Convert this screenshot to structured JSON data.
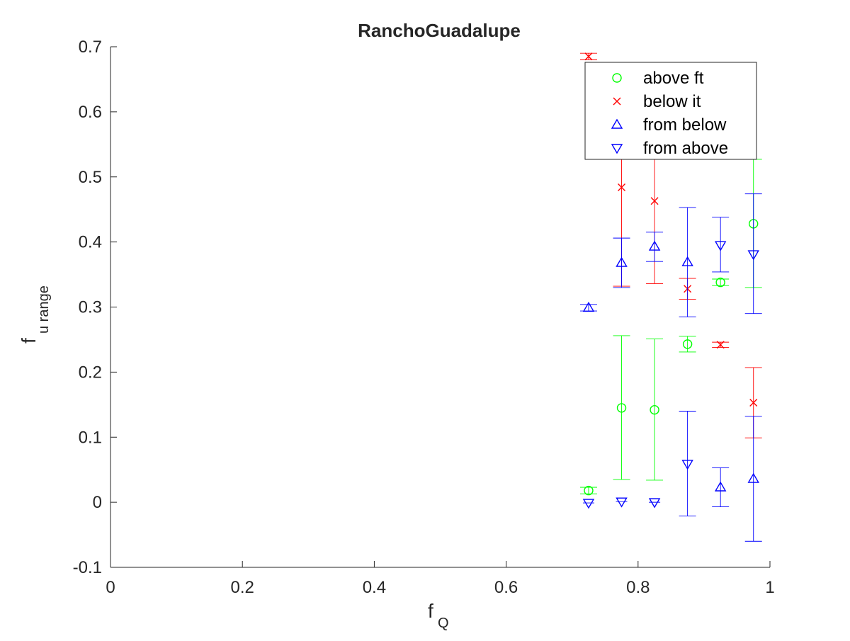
{
  "chart_data": {
    "type": "scatter",
    "title": "RanchoGuadalupe",
    "xlabel": {
      "main": "f",
      "sub": "Q"
    },
    "ylabel": {
      "main": "f",
      "sub": "u range"
    },
    "xlim": [
      0,
      1
    ],
    "ylim": [
      -0.1,
      0.7
    ],
    "x_ticks": [
      0,
      0.2,
      0.4,
      0.6,
      0.8,
      1
    ],
    "x_tick_labels": [
      "0",
      "0.2",
      "0.4",
      "0.6",
      "0.8",
      "1"
    ],
    "y_ticks": [
      -0.1,
      0,
      0.1,
      0.2,
      0.3,
      0.4,
      0.5,
      0.6,
      0.7
    ],
    "y_tick_labels": [
      "-0.1",
      "0",
      "0.1",
      "0.2",
      "0.3",
      "0.4",
      "0.5",
      "0.6",
      "0.7"
    ],
    "grid": false,
    "legend_position": "top-right",
    "series": [
      {
        "name": "above ft",
        "marker": "circle",
        "color": "#00ff00",
        "points": [
          {
            "x": 0.725,
            "y": 0.018,
            "lo": 0.013,
            "hi": 0.023
          },
          {
            "x": 0.775,
            "y": 0.145,
            "lo": 0.035,
            "hi": 0.256
          },
          {
            "x": 0.825,
            "y": 0.142,
            "lo": 0.034,
            "hi": 0.251
          },
          {
            "x": 0.875,
            "y": 0.243,
            "lo": 0.231,
            "hi": 0.255
          },
          {
            "x": 0.925,
            "y": 0.338,
            "lo": 0.333,
            "hi": 0.343
          },
          {
            "x": 0.975,
            "y": 0.428,
            "lo": 0.33,
            "hi": 0.527
          }
        ]
      },
      {
        "name": "below it",
        "marker": "x",
        "color": "#ff0000",
        "points": [
          {
            "x": 0.725,
            "y": 0.685,
            "lo": 0.68,
            "hi": 0.69
          },
          {
            "x": 0.775,
            "y": 0.484,
            "lo": 0.332,
            "hi": 0.636
          },
          {
            "x": 0.825,
            "y": 0.463,
            "lo": 0.336,
            "hi": 0.59
          },
          {
            "x": 0.875,
            "y": 0.328,
            "lo": 0.312,
            "hi": 0.344
          },
          {
            "x": 0.925,
            "y": 0.242,
            "lo": 0.238,
            "hi": 0.246
          },
          {
            "x": 0.975,
            "y": 0.153,
            "lo": 0.099,
            "hi": 0.207
          }
        ]
      },
      {
        "name": "from below",
        "marker": "triangle-up",
        "color": "#0000ff",
        "points": [
          {
            "x": 0.725,
            "y": 0.299,
            "lo": 0.294,
            "hi": 0.304
          },
          {
            "x": 0.775,
            "y": 0.368,
            "lo": 0.33,
            "hi": 0.406
          },
          {
            "x": 0.825,
            "y": 0.393,
            "lo": 0.37,
            "hi": 0.415
          },
          {
            "x": 0.875,
            "y": 0.369,
            "lo": 0.285,
            "hi": 0.453
          },
          {
            "x": 0.925,
            "y": 0.023,
            "lo": -0.007,
            "hi": 0.053
          },
          {
            "x": 0.975,
            "y": 0.036,
            "lo": -0.06,
            "hi": 0.132
          }
        ]
      },
      {
        "name": "from above",
        "marker": "triangle-down",
        "color": "#0000ff",
        "points": [
          {
            "x": 0.725,
            "y": -0.001,
            "lo": -0.001,
            "hi": -0.001
          },
          {
            "x": 0.775,
            "y": 0.001,
            "lo": 0.001,
            "hi": 0.001
          },
          {
            "x": 0.825,
            "y": 0.0,
            "lo": 0.0,
            "hi": 0.0
          },
          {
            "x": 0.875,
            "y": 0.059,
            "lo": -0.021,
            "hi": 0.14
          },
          {
            "x": 0.925,
            "y": 0.395,
            "lo": 0.354,
            "hi": 0.438
          },
          {
            "x": 0.975,
            "y": 0.381,
            "lo": 0.29,
            "hi": 0.474
          }
        ]
      }
    ]
  }
}
